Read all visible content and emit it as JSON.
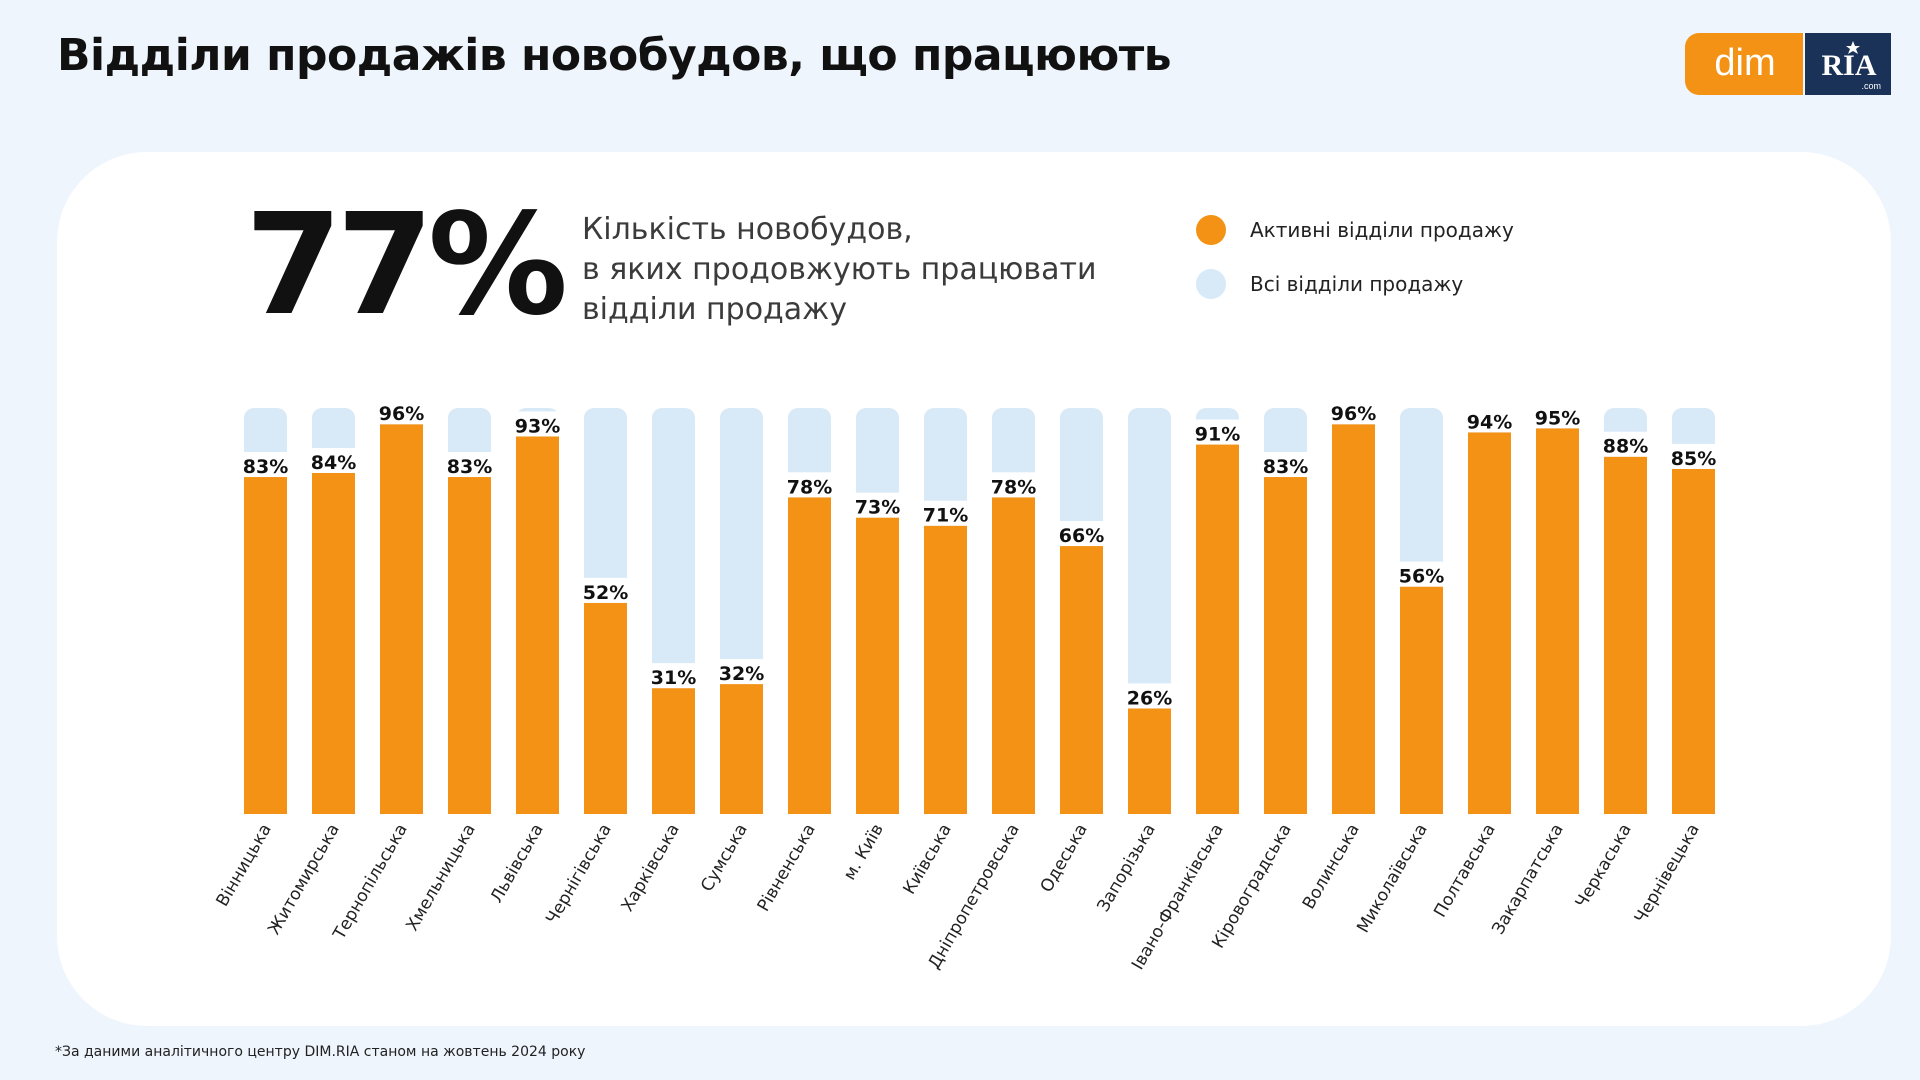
{
  "title": "Відділи продажів новобудов, що працюють",
  "logo": {
    "left_text": "dim",
    "right_text": "RIA",
    "suffix": ".com"
  },
  "headline": {
    "value": "77%",
    "description_lines": [
      "Кількість новобудов,",
      "в яких продовжують працювати",
      "відділи продажу"
    ]
  },
  "legend": [
    {
      "label": "Активні відділи продажу",
      "color": "#f39214"
    },
    {
      "label": "Всі відділи продажу",
      "color": "#d8e9f8"
    }
  ],
  "footnote": "*За даними аналітичного центру DIM.RIA станом на жовтень 2024 року",
  "colors": {
    "active": "#f39214",
    "total": "#d8e9f8",
    "logo_orange": "#f39214",
    "logo_navy": "#1a3257"
  },
  "chart_data": {
    "type": "bar",
    "ylim": [
      0,
      100
    ],
    "categories": [
      "Вінницька",
      "Житомирська",
      "Тернопільська",
      "Хмельницька",
      "Львівська",
      "Чернігівська",
      "Харківська",
      "Сумська",
      "Рівненська",
      "м. Київ",
      "Київська",
      "Дніпропетровська",
      "Одеська",
      "Запорізька",
      "Івано-Франківська",
      "Кіровоградська",
      "Волинська",
      "Миколаївська",
      "Полтавська",
      "Закарпатська",
      "Черкаська",
      "Чернівецька"
    ],
    "series": [
      {
        "name": "Активні відділи продажу",
        "values": [
          83,
          84,
          96,
          83,
          93,
          52,
          31,
          32,
          78,
          73,
          71,
          78,
          66,
          26,
          91,
          83,
          96,
          56,
          94,
          95,
          88,
          85
        ]
      },
      {
        "name": "Всі відділи продажу",
        "values": [
          100,
          100,
          100,
          100,
          100,
          100,
          100,
          100,
          100,
          100,
          100,
          100,
          100,
          100,
          100,
          100,
          100,
          100,
          100,
          100,
          100,
          100
        ]
      }
    ],
    "data_labels": [
      "83%",
      "84%",
      "96%",
      "83%",
      "93%",
      "52%",
      "31%",
      "32%",
      "78%",
      "73%",
      "71%",
      "78%",
      "66%",
      "26%",
      "91%",
      "83%",
      "96%",
      "56%",
      "94%",
      "95%",
      "88%",
      "85%"
    ]
  }
}
